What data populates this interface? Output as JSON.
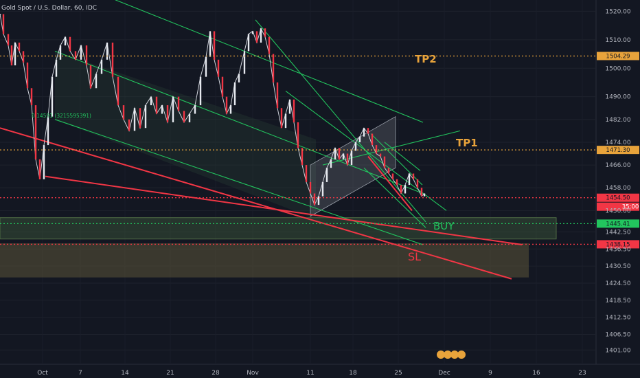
{
  "chart_data": {
    "type": "line",
    "title": "Gold Spot / U.S. Dollar, 60, IDC",
    "xlabel": "",
    "ylabel": "",
    "ylim": [
      1396,
      1523
    ],
    "y_ticks": [
      "1520.00",
      "1510.00",
      "1500.00",
      "1490.00",
      "1482.00",
      "1474.00",
      "1466.00",
      "1458.00",
      "1450.00",
      "1442.50",
      "1436.50",
      "1430.50",
      "1424.50",
      "1418.50",
      "1412.50",
      "1406.50",
      "1401.00"
    ],
    "x_ticks": [
      "Oct",
      "7",
      "14",
      "21",
      "28",
      "Nov",
      "11",
      "18",
      "25",
      "Dec",
      "9",
      "16",
      "23"
    ],
    "x": [
      0,
      5,
      12,
      17,
      22,
      28,
      34,
      40,
      46,
      52,
      58,
      64,
      70,
      76,
      82,
      88,
      95,
      102,
      110,
      118,
      126,
      132,
      140,
      148,
      156,
      164,
      172,
      180,
      188,
      196,
      204,
      212,
      220,
      228,
      236,
      244,
      252,
      260,
      268,
      276,
      284,
      292,
      300,
      306,
      312,
      318,
      324,
      330,
      336,
      342,
      348,
      356,
      362,
      368,
      374,
      380,
      386,
      392,
      398,
      404,
      410,
      416,
      422,
      428,
      434,
      440,
      446,
      452,
      458,
      464,
      470,
      476,
      482,
      488,
      494,
      500,
      506,
      512,
      518,
      524,
      530,
      536,
      542,
      548,
      554,
      560,
      566,
      572,
      578,
      584,
      590,
      596,
      602,
      608,
      614,
      618
    ],
    "series": [
      {
        "values": [
          1519,
          1512,
          1508,
          1501,
          1509,
          1506,
          1502,
          1493,
          1487,
          1468,
          1461,
          1473,
          1483,
          1497,
          1503,
          1508,
          1511,
          1506,
          1503,
          1508,
          1501,
          1493,
          1498,
          1503,
          1509,
          1497,
          1487,
          1482,
          1478,
          1486,
          1479,
          1487,
          1490,
          1484,
          1487,
          1481,
          1490,
          1485,
          1481,
          1484,
          1487,
          1497,
          1504,
          1513,
          1503,
          1497,
          1490,
          1484,
          1487,
          1495,
          1498,
          1506,
          1512,
          1513,
          1509,
          1514,
          1511,
          1505,
          1495,
          1486,
          1479,
          1484,
          1489,
          1481,
          1472,
          1466,
          1460,
          1456,
          1452,
          1455,
          1460,
          1465,
          1468,
          1472,
          1468,
          1470,
          1466,
          1471,
          1474,
          1476,
          1479,
          1477,
          1473,
          1470,
          1469,
          1465,
          1463,
          1461,
          1459,
          1456,
          1459,
          1463,
          1461,
          1458,
          1455,
          1456
        ]
      }
    ],
    "levels": [
      {
        "label": "1504.29",
        "value": 1504.29,
        "color": "#e8a33b"
      },
      {
        "label": "1471.30",
        "value": 1471.3,
        "color": "#e8a33b"
      },
      {
        "label": "1454.50",
        "value": 1454.5,
        "color": "#f23645"
      },
      {
        "label": "1445.41",
        "value": 1445.41,
        "color": "#22c55e"
      },
      {
        "label": "1438.15",
        "value": 1438.15,
        "color": "#f23645"
      }
    ],
    "badges": {
      "current_value": "1454.50",
      "countdown": "35:00"
    },
    "annotations": {
      "tp2": "TP2",
      "tp1": "TP1",
      "buy": "BUY",
      "sl": "SL",
      "fib_label": "0.14591 (3215595391)"
    },
    "colors": {
      "background": "#131722",
      "candle_up": "#e6e9ef",
      "candle_down": "#f23645",
      "channel": "#22c55e",
      "trend": "#f23645",
      "target": "#e8a33b"
    }
  }
}
